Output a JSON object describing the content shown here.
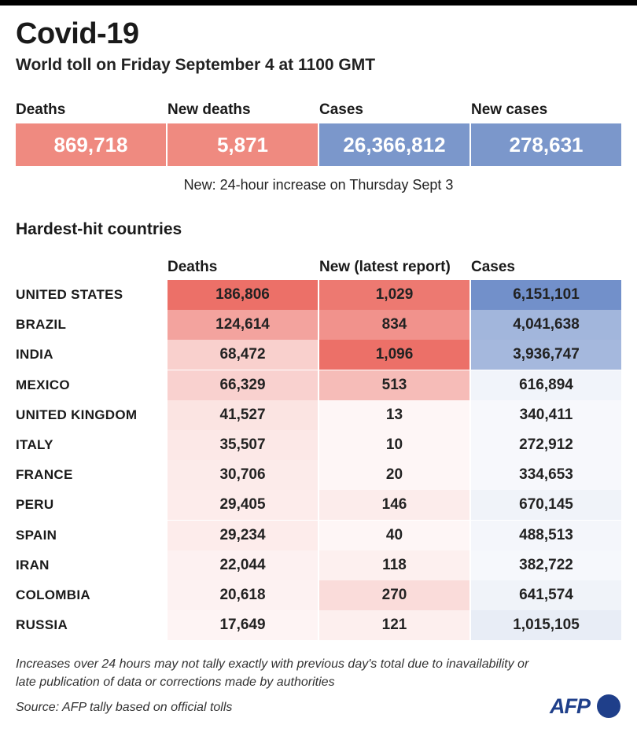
{
  "header": {
    "title": "Covid-19",
    "subtitle": "World toll on Friday September 4 at 1100 GMT"
  },
  "summary": {
    "deaths_label": "Deaths",
    "deaths_value": "869,718",
    "new_deaths_label": "New deaths",
    "new_deaths_value": "5,871",
    "cases_label": "Cases",
    "cases_value": "26,366,812",
    "new_cases_label": "New cases",
    "new_cases_value": "278,631",
    "note": "New: 24-hour increase on Thursday Sept 3"
  },
  "colors": {
    "deaths": "#ef8a80",
    "cases": "#7b97cb"
  },
  "table": {
    "title": "Hardest-hit countries",
    "columns": [
      "Deaths",
      "New (latest report)",
      "Cases"
    ]
  },
  "chart_data": {
    "type": "table",
    "columns": [
      "Deaths",
      "New (latest report)",
      "Cases"
    ],
    "rows": [
      {
        "country": "UNITED STATES",
        "deaths": "186,806",
        "new": "1,029",
        "cases": "6,151,101",
        "deaths_n": 186806,
        "new_n": 1029,
        "cases_n": 6151101
      },
      {
        "country": "BRAZIL",
        "deaths": "124,614",
        "new": "834",
        "cases": "4,041,638",
        "deaths_n": 124614,
        "new_n": 834,
        "cases_n": 4041638
      },
      {
        "country": "INDIA",
        "deaths": "68,472",
        "new": "1,096",
        "cases": "3,936,747",
        "deaths_n": 68472,
        "new_n": 1096,
        "cases_n": 3936747
      },
      {
        "country": "MEXICO",
        "deaths": "66,329",
        "new": "513",
        "cases": "616,894",
        "deaths_n": 66329,
        "new_n": 513,
        "cases_n": 616894
      },
      {
        "country": "UNITED KINGDOM",
        "deaths": "41,527",
        "new": "13",
        "cases": "340,411",
        "deaths_n": 41527,
        "new_n": 13,
        "cases_n": 340411
      },
      {
        "country": "ITALY",
        "deaths": "35,507",
        "new": "10",
        "cases": "272,912",
        "deaths_n": 35507,
        "new_n": 10,
        "cases_n": 272912
      },
      {
        "country": "FRANCE",
        "deaths": "30,706",
        "new": "20",
        "cases": "334,653",
        "deaths_n": 30706,
        "new_n": 20,
        "cases_n": 334653
      },
      {
        "country": "PERU",
        "deaths": "29,405",
        "new": "146",
        "cases": "670,145",
        "deaths_n": 29405,
        "new_n": 146,
        "cases_n": 670145
      },
      {
        "country": "SPAIN",
        "deaths": "29,234",
        "new": "40",
        "cases": "488,513",
        "deaths_n": 29234,
        "new_n": 40,
        "cases_n": 488513
      },
      {
        "country": "IRAN",
        "deaths": "22,044",
        "new": "118",
        "cases": "382,722",
        "deaths_n": 22044,
        "new_n": 118,
        "cases_n": 382722
      },
      {
        "country": "COLOMBIA",
        "deaths": "20,618",
        "new": "270",
        "cases": "641,574",
        "deaths_n": 20618,
        "new_n": 270,
        "cases_n": 641574
      },
      {
        "country": "RUSSIA",
        "deaths": "17,649",
        "new": "121",
        "cases": "1,015,105",
        "deaths_n": 17649,
        "new_n": 121,
        "cases_n": 1015105
      }
    ]
  },
  "footer": {
    "footnote": "Increases over 24 hours may not tally exactly with previous day's total due to inavailability or late publication of data or corrections made by authorities",
    "source": "Source: AFP tally based on official tolls",
    "logo_text": "AFP"
  }
}
